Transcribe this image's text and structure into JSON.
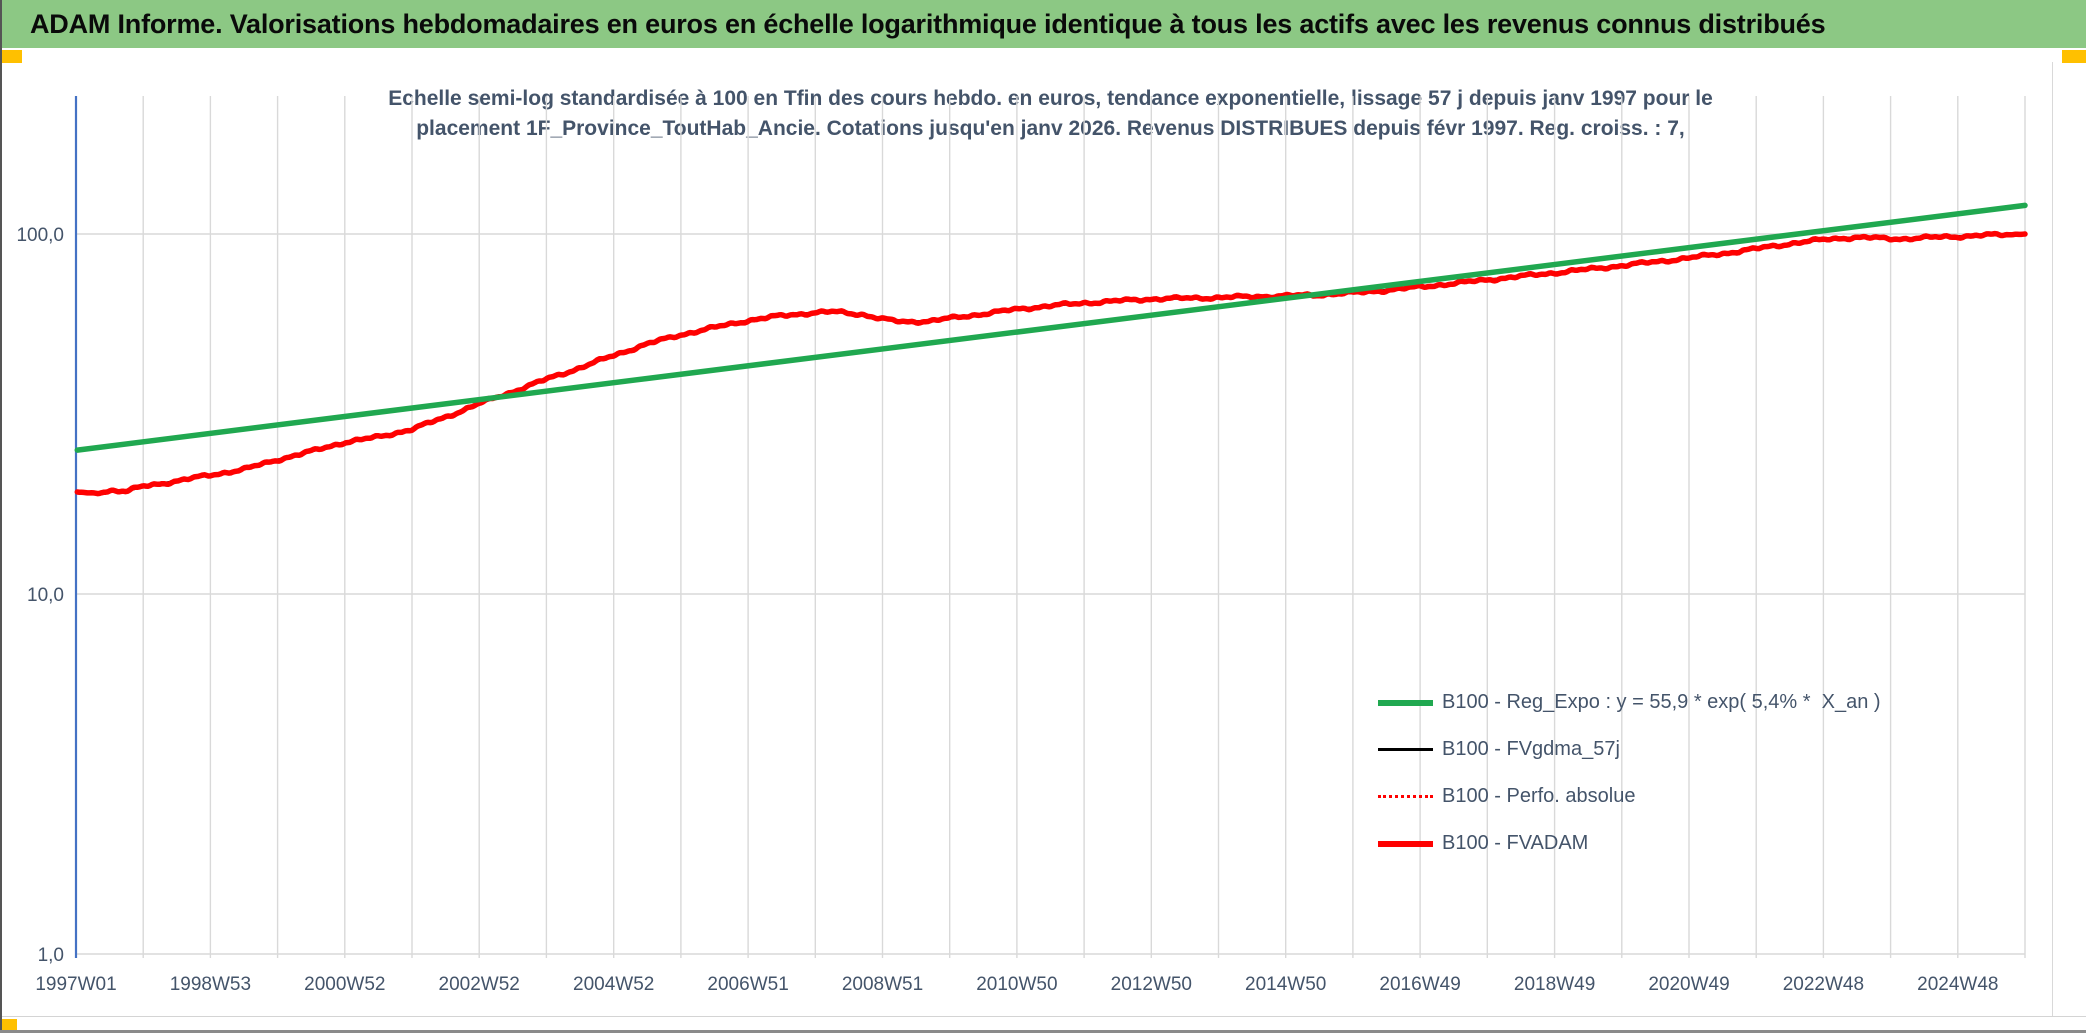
{
  "window": {
    "header_title": "ADAM Informe. Valorisations hebdomadaires en euros en échelle logarithmique identique à tous les actifs avec les revenus connus distribués",
    "colors": {
      "header_bg": "#8CC884",
      "accent": "#FFC000"
    }
  },
  "chart_data": {
    "type": "line",
    "title_line1": "Echelle semi-log standardisée à 100 en Tfin des cours hebdo. en euros, tendance exponentielle, lissage 57 j depuis janv 1997 pour le",
    "title_line2": "placement 1F_Province_ToutHab_Ancie. Cotations jusqu'en janv 2026. Revenus DISTRIBUES depuis févr 1997. Reg. croiss. : 7,",
    "x_axis": {
      "tick_labels": [
        "1997W01",
        "1998W53",
        "2000W52",
        "2002W52",
        "2004W52",
        "2006W51",
        "2008W51",
        "2010W50",
        "2012W50",
        "2014W50",
        "2016W49",
        "2018W49",
        "2020W49",
        "2022W48",
        "2024W48"
      ],
      "year_start": 1997,
      "year_end": 2026,
      "gridlines_every_years": 1,
      "labels_every_years": 2
    },
    "y_axis": {
      "scale": "log10",
      "tick_labels": [
        "100,0",
        "10,0",
        "1,0"
      ],
      "tick_values": [
        100,
        10,
        1
      ],
      "ylim": [
        1,
        242
      ]
    },
    "grid": true,
    "legend_position": "inside-lower-right",
    "colors": {
      "grid": "#D9D9D9",
      "axis": "#4472C4",
      "text": "#44546A",
      "green": "#20A850",
      "red": "#FE0101",
      "black": "#000000"
    },
    "draw_order": [
      1,
      2,
      3,
      0
    ],
    "series": [
      {
        "key": "reg-expo",
        "name": "B100 - Reg_Expo : y = 55,9 * exp( 5,4% *  X_an )",
        "color_key": "green",
        "style": "solid-thick",
        "wiggle": false,
        "points": [
          [
            1997.02,
            25.1
          ],
          [
            2026.0,
            120.1
          ]
        ]
      },
      {
        "key": "fvgdma-57j",
        "name": "B100 - FVgdma_57j",
        "color_key": "black",
        "style": "solid-thin",
        "wiggle": false,
        "points_same_as": 3
      },
      {
        "key": "perfo-absolue",
        "name": "B100 - Perfo. absolue",
        "color_key": "red",
        "style": "dotted-thin",
        "wiggle": false,
        "points_same_as": 3
      },
      {
        "key": "fvadam",
        "name": "B100 - FVADAM",
        "color_key": "red",
        "style": "solid-thick",
        "wiggle": true,
        "points": [
          [
            1997.02,
            19.2
          ],
          [
            1997.25,
            19.0
          ],
          [
            1997.5,
            19.4
          ],
          [
            1997.75,
            19.3
          ],
          [
            1998.0,
            19.9
          ],
          [
            1998.5,
            20.6
          ],
          [
            1999.0,
            21.4
          ],
          [
            1999.5,
            22.2
          ],
          [
            2000.0,
            23.6
          ],
          [
            2000.5,
            24.9
          ],
          [
            2001.0,
            26.4
          ],
          [
            2001.5,
            27.3
          ],
          [
            2002.0,
            28.7
          ],
          [
            2002.5,
            31.0
          ],
          [
            2003.0,
            33.8
          ],
          [
            2003.5,
            36.5
          ],
          [
            2004.0,
            39.5
          ],
          [
            2004.5,
            42.5
          ],
          [
            2005.0,
            46.0
          ],
          [
            2005.5,
            49.5
          ],
          [
            2006.0,
            52.5
          ],
          [
            2006.5,
            55.0
          ],
          [
            2007.0,
            57.5
          ],
          [
            2007.5,
            59.3
          ],
          [
            2008.0,
            60.5
          ],
          [
            2008.3,
            60.8
          ],
          [
            2008.7,
            59.8
          ],
          [
            2009.0,
            58.0
          ],
          [
            2009.3,
            57.0
          ],
          [
            2009.7,
            57.3
          ],
          [
            2010.0,
            58.3
          ],
          [
            2010.5,
            60.0
          ],
          [
            2011.0,
            61.8
          ],
          [
            2011.5,
            63.2
          ],
          [
            2012.0,
            64.3
          ],
          [
            2012.5,
            65.2
          ],
          [
            2013.0,
            66.0
          ],
          [
            2013.5,
            66.3
          ],
          [
            2014.0,
            66.6
          ],
          [
            2014.5,
            67.0
          ],
          [
            2015.0,
            67.3
          ],
          [
            2015.5,
            67.8
          ],
          [
            2016.0,
            68.6
          ],
          [
            2016.5,
            69.8
          ],
          [
            2017.0,
            71.3
          ],
          [
            2017.5,
            72.9
          ],
          [
            2018.0,
            74.6
          ],
          [
            2018.5,
            76.3
          ],
          [
            2019.0,
            78.0
          ],
          [
            2019.5,
            79.8
          ],
          [
            2020.0,
            81.7
          ],
          [
            2020.5,
            83.7
          ],
          [
            2021.0,
            85.8
          ],
          [
            2021.5,
            88.2
          ],
          [
            2022.0,
            91.0
          ],
          [
            2022.5,
            94.0
          ],
          [
            2023.0,
            96.5
          ],
          [
            2023.3,
            97.5
          ],
          [
            2023.6,
            97.8
          ],
          [
            2023.9,
            97.2
          ],
          [
            2024.2,
            97.0
          ],
          [
            2024.5,
            97.6
          ],
          [
            2024.8,
            98.2
          ],
          [
            2025.1,
            98.6
          ],
          [
            2025.4,
            99.2
          ],
          [
            2025.7,
            99.6
          ],
          [
            2026.0,
            100.0
          ]
        ]
      }
    ]
  }
}
